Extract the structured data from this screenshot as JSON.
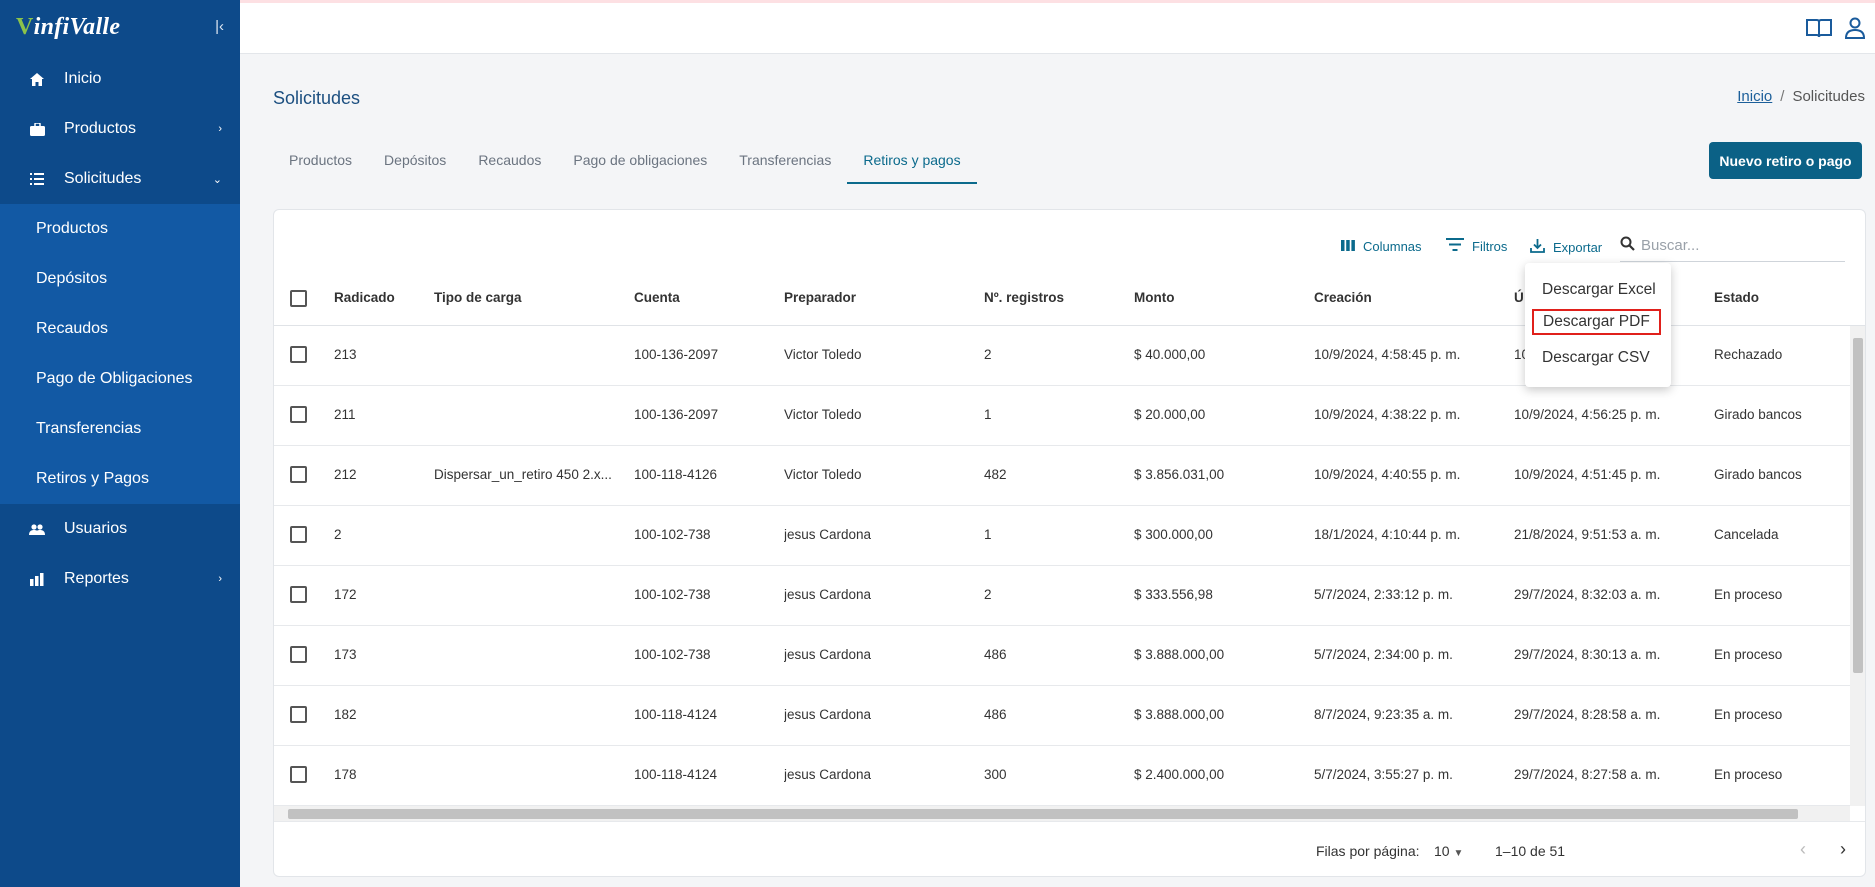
{
  "app": {
    "brand_prefix": "",
    "brand_v": "V",
    "brand_rest": "infiValle"
  },
  "sidebar": {
    "items": [
      {
        "label": "Inicio",
        "icon": "home-icon"
      },
      {
        "label": "Productos",
        "icon": "briefcase-icon",
        "chevron": "›"
      },
      {
        "label": "Solicitudes",
        "icon": "list-icon",
        "chevron": "⌄"
      }
    ],
    "subitems": [
      "Productos",
      "Depósitos",
      "Recaudos",
      "Pago de Obligaciones",
      "Transferencias",
      "Retiros y Pagos"
    ],
    "items_after": [
      {
        "label": "Usuarios",
        "icon": "users-icon"
      },
      {
        "label": "Reportes",
        "icon": "chart-icon",
        "chevron": "›"
      }
    ]
  },
  "header": {
    "page_title": "Solicitudes",
    "breadcrumb_home": "Inicio",
    "breadcrumb_sep": "/",
    "breadcrumb_current": "Solicitudes"
  },
  "tabs": [
    "Productos",
    "Depósitos",
    "Recaudos",
    "Pago de obligaciones",
    "Transferencias",
    "Retiros y pagos"
  ],
  "new_button": "Nuevo retiro o pago",
  "toolbar": {
    "columns": "Columnas",
    "filters": "Filtros",
    "export": "Exportar",
    "search_placeholder": "Buscar..."
  },
  "export_menu": [
    "Descargar Excel",
    "Descargar PDF",
    "Descargar CSV"
  ],
  "table": {
    "headers": [
      "Radicado",
      "Tipo de carga",
      "Cuenta",
      "Preparador",
      "Nº. registros",
      "Monto",
      "Creación",
      "Ú",
      "Estado"
    ],
    "rows": [
      [
        "213",
        "",
        "100-136-2097",
        "Victor Toledo",
        "2",
        "$ 40.000,00",
        "10/9/2024, 4:58:45 p. m.",
        "10",
        "Rechazado"
      ],
      [
        "211",
        "",
        "100-136-2097",
        "Victor Toledo",
        "1",
        "$ 20.000,00",
        "10/9/2024, 4:38:22 p. m.",
        "10/9/2024, 4:56:25 p. m.",
        "Girado bancos"
      ],
      [
        "212",
        "Dispersar_un_retiro 450 2.x...",
        "100-118-4126",
        "Victor Toledo",
        "482",
        "$ 3.856.031,00",
        "10/9/2024, 4:40:55 p. m.",
        "10/9/2024, 4:51:45 p. m.",
        "Girado bancos"
      ],
      [
        "2",
        "",
        "100-102-738",
        "jesus Cardona",
        "1",
        "$ 300.000,00",
        "18/1/2024, 4:10:44 p. m.",
        "21/8/2024, 9:51:53 a. m.",
        "Cancelada"
      ],
      [
        "172",
        "",
        "100-102-738",
        "jesus Cardona",
        "2",
        "$ 333.556,98",
        "5/7/2024, 2:33:12 p. m.",
        "29/7/2024, 8:32:03 a. m.",
        "En proceso"
      ],
      [
        "173",
        "",
        "100-102-738",
        "jesus Cardona",
        "486",
        "$ 3.888.000,00",
        "5/7/2024, 2:34:00 p. m.",
        "29/7/2024, 8:30:13 a. m.",
        "En proceso"
      ],
      [
        "182",
        "",
        "100-118-4124",
        "jesus Cardona",
        "486",
        "$ 3.888.000,00",
        "8/7/2024, 9:23:35 a. m.",
        "29/7/2024, 8:28:58 a. m.",
        "En proceso"
      ],
      [
        "178",
        "",
        "100-118-4124",
        "jesus Cardona",
        "300",
        "$ 2.400.000,00",
        "5/7/2024, 3:55:27 p. m.",
        "29/7/2024, 8:27:58 a. m.",
        "En proceso"
      ]
    ]
  },
  "pagination": {
    "rows_label": "Filas por página:",
    "rows_value": "10",
    "range": "1–10 de 51"
  }
}
